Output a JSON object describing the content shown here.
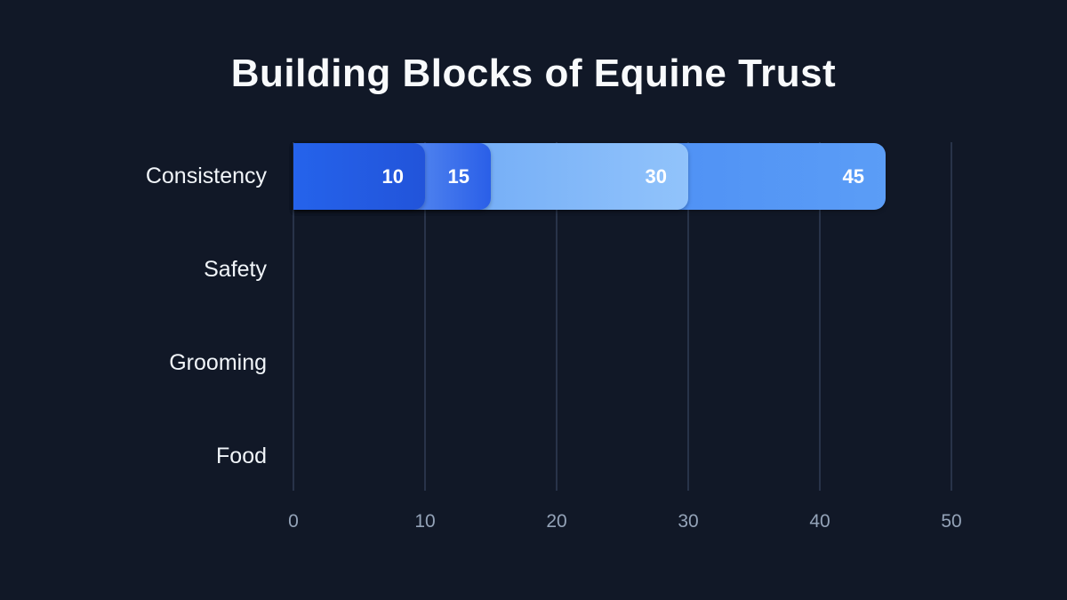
{
  "page": {
    "background_color": "#111827",
    "title_color": "#f8fafc",
    "gridline_color": "#283349",
    "tick_color": "#94a3b8",
    "category_label_color": "#f1f5f9",
    "value_label_color": "#ffffff"
  },
  "chart_data": {
    "type": "bar",
    "orientation": "horizontal",
    "title": "Building Blocks of Equine Trust",
    "categories": [
      "Consistency",
      "Safety",
      "Grooming",
      "Food"
    ],
    "values": [
      45,
      30,
      15,
      10
    ],
    "value_labels": [
      "45",
      "30",
      "15",
      "10"
    ],
    "x_ticks": [
      0,
      10,
      20,
      30,
      40,
      50
    ],
    "x_tick_labels": [
      "0",
      "10",
      "20",
      "30",
      "40",
      "50"
    ],
    "xlim": [
      0,
      50
    ],
    "xlabel": "",
    "ylabel": "",
    "grid": "vertical-only",
    "legend": "none",
    "bar_gradients": [
      {
        "from": "#3c7ef2",
        "to": "#5b9df6"
      },
      {
        "from": "#5e9df3",
        "to": "#91c3fb"
      },
      {
        "from": "#90c1fa",
        "to": "#2a5fe8"
      },
      {
        "from": "#2563eb",
        "to": "#2254da"
      }
    ]
  }
}
